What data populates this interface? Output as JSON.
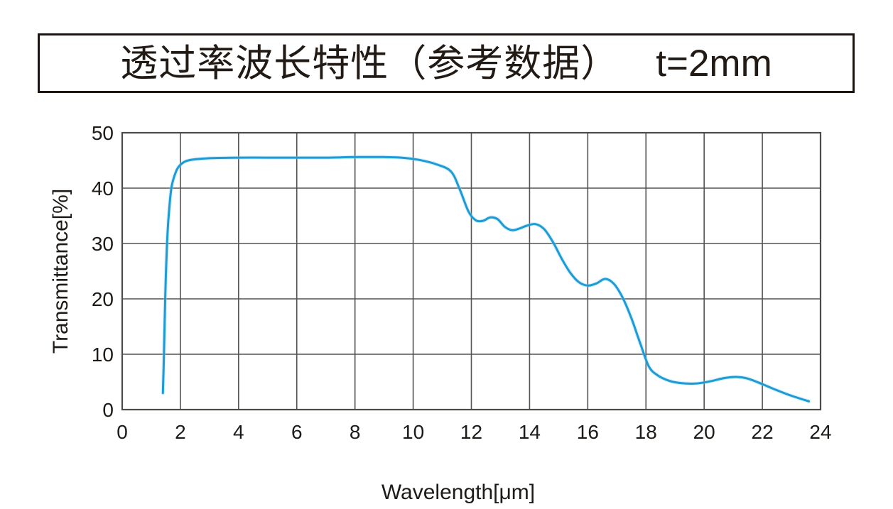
{
  "title": {
    "main": "透过率波长特性（参考数据）",
    "spec": "t=2mm"
  },
  "chart_data": {
    "type": "line",
    "title": "透过率波长特性（参考数据） t=2mm",
    "xlabel": "Wavelength[μm]",
    "ylabel": "Transmittance[%]",
    "xlim": [
      0,
      24
    ],
    "ylim": [
      0,
      50
    ],
    "x_ticks": [
      0,
      2,
      4,
      6,
      8,
      10,
      12,
      14,
      16,
      18,
      20,
      22,
      24
    ],
    "y_ticks": [
      0,
      10,
      20,
      30,
      40,
      50
    ],
    "grid": true,
    "legend_position": "none",
    "series": [
      {
        "name": "Transmittance (t=2mm)",
        "color": "#1e9ad5",
        "points": [
          [
            1.4,
            3.0
          ],
          [
            1.43,
            9.0
          ],
          [
            1.46,
            16.0
          ],
          [
            1.5,
            24.0
          ],
          [
            1.55,
            31.0
          ],
          [
            1.62,
            36.5
          ],
          [
            1.7,
            40.3
          ],
          [
            1.85,
            43.0
          ],
          [
            2.0,
            44.2
          ],
          [
            2.2,
            44.9
          ],
          [
            2.5,
            45.2
          ],
          [
            3.0,
            45.4
          ],
          [
            4.0,
            45.5
          ],
          [
            5.0,
            45.5
          ],
          [
            6.0,
            45.5
          ],
          [
            7.0,
            45.5
          ],
          [
            8.0,
            45.6
          ],
          [
            9.0,
            45.6
          ],
          [
            9.6,
            45.5
          ],
          [
            10.2,
            45.1
          ],
          [
            10.8,
            44.3
          ],
          [
            11.3,
            43.0
          ],
          [
            11.6,
            39.8
          ],
          [
            11.9,
            35.8
          ],
          [
            12.15,
            34.2
          ],
          [
            12.4,
            34.1
          ],
          [
            12.65,
            34.7
          ],
          [
            12.9,
            34.4
          ],
          [
            13.15,
            33.0
          ],
          [
            13.4,
            32.4
          ],
          [
            13.65,
            32.7
          ],
          [
            13.9,
            33.2
          ],
          [
            14.2,
            33.5
          ],
          [
            14.5,
            32.6
          ],
          [
            14.8,
            30.3
          ],
          [
            15.1,
            27.3
          ],
          [
            15.4,
            24.7
          ],
          [
            15.7,
            23.0
          ],
          [
            16.0,
            22.4
          ],
          [
            16.3,
            22.8
          ],
          [
            16.6,
            23.6
          ],
          [
            16.9,
            22.7
          ],
          [
            17.2,
            20.2
          ],
          [
            17.5,
            16.5
          ],
          [
            17.8,
            12.0
          ],
          [
            18.1,
            7.8
          ],
          [
            18.4,
            6.2
          ],
          [
            18.8,
            5.2
          ],
          [
            19.2,
            4.8
          ],
          [
            19.7,
            4.7
          ],
          [
            20.2,
            5.1
          ],
          [
            20.7,
            5.7
          ],
          [
            21.1,
            5.9
          ],
          [
            21.5,
            5.6
          ],
          [
            22.0,
            4.6
          ],
          [
            22.5,
            3.5
          ],
          [
            23.0,
            2.5
          ],
          [
            23.6,
            1.5
          ]
        ]
      }
    ]
  },
  "colors": {
    "curve": "#1e9ad5",
    "curve_glow": "#8ed4f2",
    "grid": "#555350",
    "plot_border": "#4d4b48",
    "text": "#1d1a17",
    "title_border": "#1c1410",
    "background": "#ffffff"
  }
}
